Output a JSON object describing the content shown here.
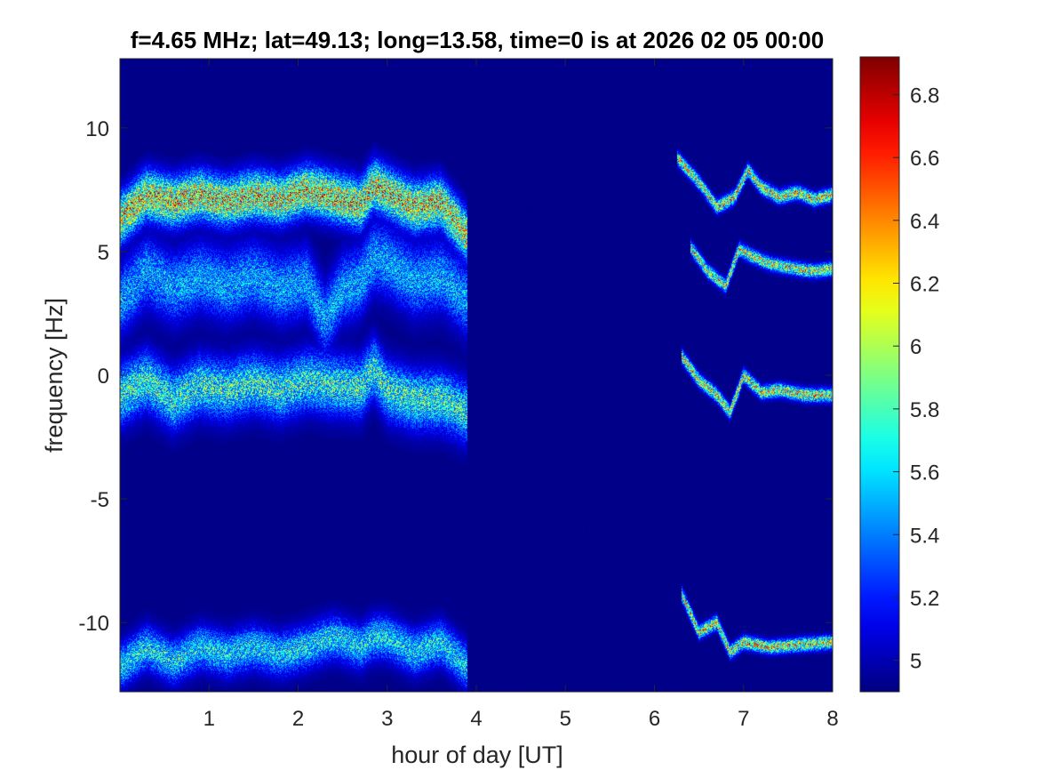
{
  "chart_data": {
    "type": "heatmap",
    "title": "f=4.65 MHz;  lat=49.13; long=13.58, time=0 is at 2026 02 05 00:00",
    "xlabel": "hour of day [UT]",
    "ylabel": "frequency [Hz]",
    "xlim": [
      0,
      8
    ],
    "ylim": [
      -12.8,
      12.8
    ],
    "x_ticks": [
      1,
      2,
      3,
      4,
      5,
      6,
      7,
      8
    ],
    "x_tick_labels": [
      "1",
      "2",
      "3",
      "4",
      "5",
      "6",
      "7",
      "8"
    ],
    "y_ticks": [
      -10,
      -5,
      0,
      5,
      10
    ],
    "y_tick_labels": [
      "-10",
      "-5",
      "0",
      "5",
      "10"
    ],
    "colorbar": {
      "colormap": "jet",
      "clim": [
        4.9,
        6.92
      ],
      "ticks": [
        5,
        5.2,
        5.4,
        5.6,
        5.8,
        6,
        6.2,
        6.4,
        6.6,
        6.8
      ],
      "tick_labels": [
        "5",
        "5.2",
        "5.4",
        "5.6",
        "5.8",
        "6",
        "6.2",
        "6.4",
        "6.6",
        "6.8"
      ]
    },
    "background_value": 4.92,
    "grid": false,
    "traces": [
      {
        "x": [
          0,
          0.3,
          0.6,
          0.9,
          1.2,
          1.5,
          1.8,
          2.1,
          2.4,
          2.7,
          2.85,
          3.0,
          3.3,
          3.6,
          3.9
        ],
        "y": [
          6.3,
          7.3,
          7.0,
          7.3,
          7.0,
          7.3,
          7.1,
          7.5,
          7.2,
          6.9,
          7.7,
          7.4,
          6.8,
          7.0,
          5.6
        ],
        "peak": 6.6,
        "width_hz": 0.9
      },
      {
        "x": [
          0,
          0.3,
          0.6,
          0.9,
          1.2,
          1.5,
          1.8,
          2.1,
          2.3,
          2.5,
          2.7,
          2.85,
          3.0,
          3.3,
          3.6,
          3.9
        ],
        "y": [
          3.0,
          4.2,
          3.5,
          4.0,
          3.6,
          4.0,
          3.5,
          3.8,
          2.2,
          3.5,
          3.8,
          4.8,
          4.6,
          3.8,
          4.0,
          3.0
        ],
        "peak": 5.7,
        "width_hz": 1.3
      },
      {
        "x": [
          0,
          0.3,
          0.6,
          0.9,
          1.2,
          1.5,
          1.8,
          2.1,
          2.4,
          2.7,
          2.85,
          3.0,
          3.3,
          3.6,
          3.9
        ],
        "y": [
          -0.8,
          -0.2,
          -1.0,
          -0.4,
          -0.6,
          -0.3,
          -0.6,
          -0.2,
          -0.4,
          -0.5,
          0.3,
          -0.6,
          -1.0,
          -1.0,
          -1.5
        ],
        "peak": 6.0,
        "width_hz": 1.1
      },
      {
        "x": [
          0,
          0.3,
          0.6,
          0.9,
          1.2,
          1.5,
          1.8,
          2.1,
          2.4,
          2.7,
          2.85,
          3.0,
          3.3,
          3.6,
          3.9
        ],
        "y": [
          -11.8,
          -11.0,
          -11.6,
          -11.0,
          -11.3,
          -11.0,
          -11.3,
          -11.0,
          -10.6,
          -11.0,
          -10.6,
          -10.6,
          -11.2,
          -10.8,
          -11.8
        ],
        "peak": 5.9,
        "width_hz": 0.8
      },
      {
        "x": [
          6.25,
          6.5,
          6.7,
          6.9,
          7.05,
          7.2,
          7.4,
          7.6,
          7.8,
          8.0
        ],
        "y": [
          8.8,
          7.8,
          6.8,
          7.2,
          8.3,
          7.6,
          7.2,
          7.4,
          7.1,
          7.3
        ],
        "peak": 6.5,
        "width_hz": 0.25
      },
      {
        "x": [
          6.4,
          6.6,
          6.8,
          6.95,
          7.1,
          7.3,
          7.6,
          7.8,
          8.0
        ],
        "y": [
          5.2,
          4.2,
          3.6,
          5.1,
          4.8,
          4.5,
          4.3,
          4.2,
          4.3
        ],
        "peak": 6.4,
        "width_hz": 0.25
      },
      {
        "x": [
          6.3,
          6.5,
          6.7,
          6.85,
          7.0,
          7.2,
          7.4,
          7.7,
          8.0
        ],
        "y": [
          0.8,
          -0.2,
          -0.8,
          -1.5,
          0.0,
          -0.7,
          -0.6,
          -0.8,
          -0.8
        ],
        "peak": 6.5,
        "width_hz": 0.25
      },
      {
        "x": [
          6.3,
          6.5,
          6.7,
          6.85,
          7.0,
          7.3,
          7.6,
          8.0
        ],
        "y": [
          -8.8,
          -10.4,
          -10.0,
          -11.2,
          -10.8,
          -11.0,
          -10.9,
          -10.8
        ],
        "peak": 6.5,
        "width_hz": 0.25
      }
    ]
  }
}
